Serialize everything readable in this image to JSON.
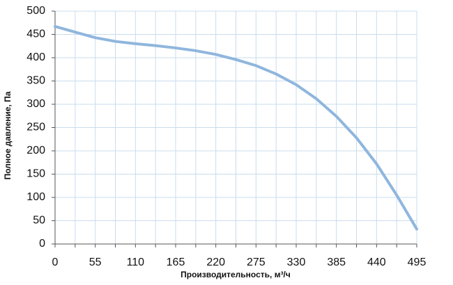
{
  "chart_data": {
    "type": "line",
    "x_label": "Производительность, м³/ч",
    "y_label": "Полное давление, Па",
    "x": [
      0,
      27.5,
      55,
      82.5,
      110,
      137.5,
      165,
      192.5,
      220,
      247.5,
      275,
      302.5,
      330,
      357.5,
      385,
      412.5,
      440,
      467.5,
      495
    ],
    "series": [
      {
        "name": "Полное давление",
        "color": "#8fb6dd",
        "values": [
          467,
          455,
          443,
          435,
          430,
          426,
          421,
          415,
          407,
          396,
          383,
          365,
          342,
          312,
          274,
          228,
          172,
          105,
          32
        ]
      }
    ],
    "xlim": [
      0,
      495
    ],
    "xticks": [
      0,
      55,
      110,
      165,
      220,
      275,
      330,
      385,
      440,
      495
    ],
    "xminorticks": [
      27.5,
      82.5,
      137.5,
      192.5,
      247.5,
      302.5,
      357.5,
      412.5,
      467.5
    ],
    "ylim": [
      0,
      500
    ],
    "yticks": [
      0,
      50,
      100,
      150,
      200,
      250,
      300,
      350,
      400,
      450,
      500
    ],
    "grid": true,
    "legend": false
  }
}
